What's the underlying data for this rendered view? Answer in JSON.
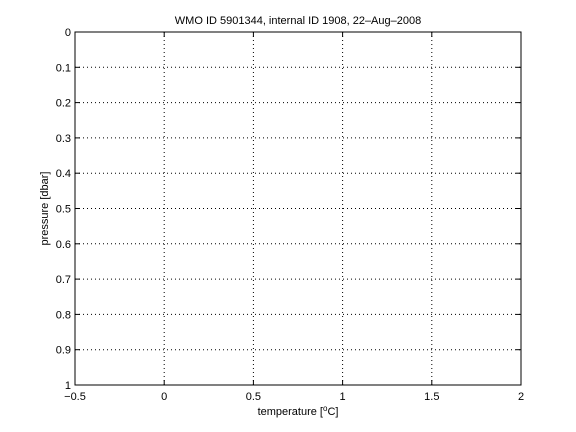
{
  "chart_data": {
    "type": "line",
    "title": "WMO ID 5901344, internal ID 1908, 22–Aug–2008",
    "xlabel_main": "temperature [",
    "xlabel_sup": "o",
    "xlabel_tail": "C]",
    "ylabel": "pressure [dbar]",
    "xlim": [
      -0.5,
      2
    ],
    "ylim": [
      0,
      1
    ],
    "y_reversed": true,
    "grid": true,
    "xticks": [
      -0.5,
      0,
      0.5,
      1,
      1.5,
      2
    ],
    "xtick_labels": [
      "−0.5",
      "0",
      "0.5",
      "1",
      "1.5",
      "2"
    ],
    "yticks": [
      0,
      0.1,
      0.2,
      0.3,
      0.4,
      0.5,
      0.6,
      0.7,
      0.8,
      0.9,
      1
    ],
    "ytick_labels": [
      "0",
      "0.1",
      "0.2",
      "0.3",
      "0.4",
      "0.5",
      "0.6",
      "0.7",
      "0.8",
      "0.9",
      "1"
    ],
    "series": []
  }
}
